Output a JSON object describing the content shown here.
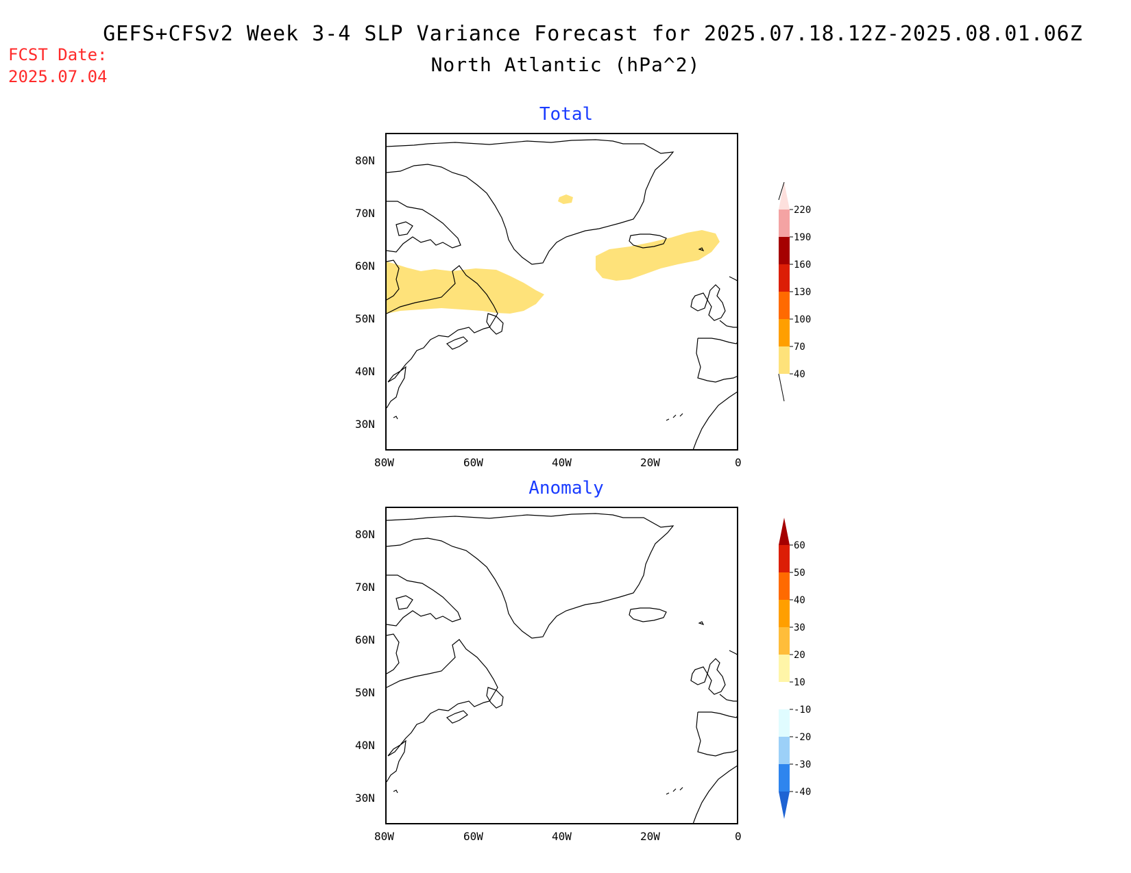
{
  "header": {
    "title": "GEFS+CFSv2 Week 3-4 SLP Variance Forecast for 2025.07.18.12Z-2025.08.01.06Z",
    "subtitle": "North Atlantic (hPa^2)",
    "fcst_label": "FCST Date:",
    "fcst_date": "2025.07.04"
  },
  "panels": [
    {
      "title": "Total",
      "lat_labels": [
        "80N",
        "70N",
        "60N",
        "50N",
        "40N",
        "30N"
      ],
      "lon_labels": [
        "80W",
        "60W",
        "40W",
        "20W",
        "0"
      ],
      "colorbar": {
        "levels": [
          "220",
          "190",
          "160",
          "130",
          "100",
          "70",
          "40"
        ],
        "colors": [
          "#fde0dd",
          "#f4a3a3",
          "#a50000",
          "#dc1e06",
          "#ff6a00",
          "#ff9f00",
          "#fee27a"
        ]
      }
    },
    {
      "title": "Anomaly",
      "lat_labels": [
        "80N",
        "70N",
        "60N",
        "50N",
        "40N",
        "30N"
      ],
      "lon_labels": [
        "80W",
        "60W",
        "40W",
        "20W",
        "0"
      ],
      "colorbar": {
        "levels": [
          "60",
          "50",
          "40",
          "30",
          "20",
          "10",
          "-10",
          "-20",
          "-30",
          "-40"
        ],
        "colors": [
          "#a50000",
          "#dc1e06",
          "#ff6a00",
          "#ff9f00",
          "#ffbd3a",
          "#fff5a8",
          "#ffffff",
          "#e0fcff",
          "#9cd0f8",
          "#2e85ee",
          "#1e63d3"
        ]
      }
    }
  ],
  "shading_colors": {
    "yellow": "#fee27a"
  }
}
